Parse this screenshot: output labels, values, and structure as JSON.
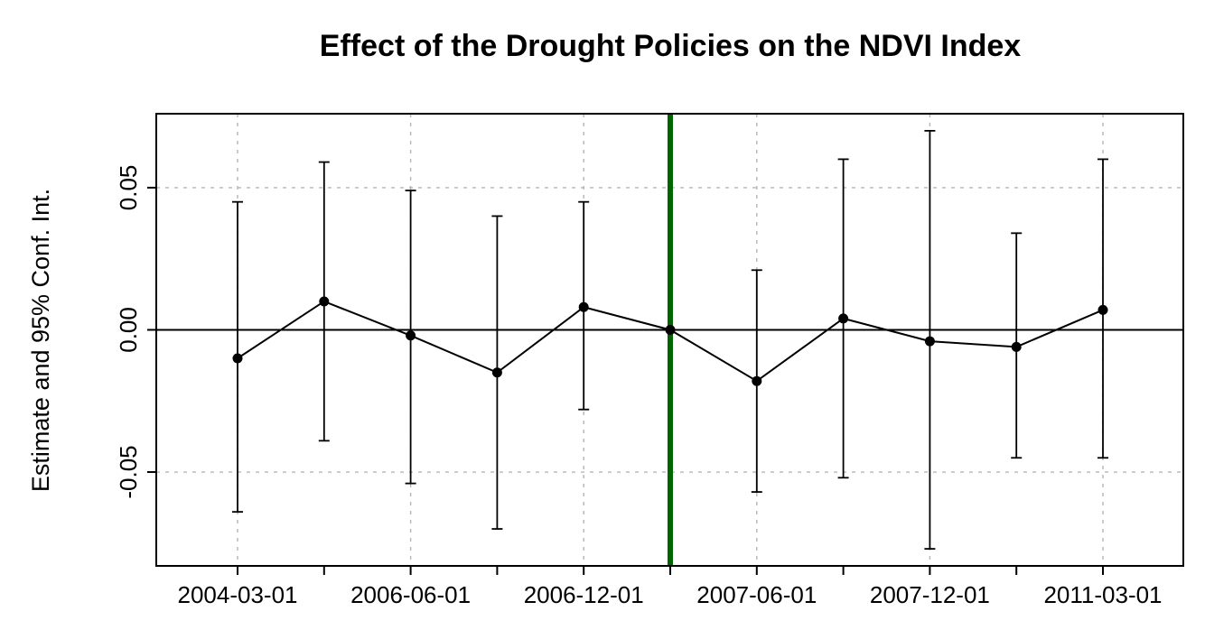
{
  "chart_data": {
    "type": "line",
    "title": "Effect of the Drought Policies on the NDVI Index",
    "xlabel": "",
    "ylabel": "Estimate and 95% Conf. Int.",
    "y_ticks": [
      -0.05,
      0.0,
      0.05
    ],
    "y_tick_labels": [
      "-0.05",
      "0.00",
      "0.05"
    ],
    "ylim": [
      -0.083,
      0.076
    ],
    "grid": true,
    "x_tick_labels": [
      "2004-03-01",
      "2006-06-01",
      "2006-12-01",
      "2007-06-01",
      "2007-12-01",
      "2011-03-01"
    ],
    "n_periods": 11,
    "reference_period_index": 5,
    "reference_line_color": "#006400",
    "estimates": [
      -0.01,
      0.01,
      -0.002,
      -0.015,
      0.008,
      0.0,
      -0.018,
      0.004,
      -0.004,
      -0.006,
      0.007
    ],
    "ci_lower": [
      -0.064,
      -0.039,
      -0.054,
      -0.07,
      -0.028,
      0.0,
      -0.057,
      -0.052,
      -0.077,
      -0.045,
      -0.045
    ],
    "ci_upper": [
      0.045,
      0.059,
      0.049,
      0.04,
      0.045,
      0.0,
      0.021,
      0.06,
      0.07,
      0.034,
      0.06
    ]
  }
}
